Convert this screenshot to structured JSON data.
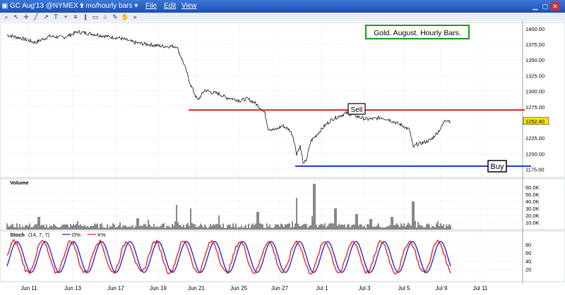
{
  "titlebar": {
    "symbol": "GC Aug'13 @NYMEX",
    "period": "1 mo/hourly bars",
    "menus": [
      "File",
      "Edit",
      "View"
    ]
  },
  "toolbar": {
    "icons": [
      "zoom-icon",
      "arrow-icon",
      "crosshair-icon",
      "line-icon",
      "trend-icon",
      "text-icon",
      "plus-icon",
      "fib-icon",
      "channel-icon",
      "box-icon",
      "circle-icon",
      "draw-icon",
      "hand-icon",
      "more-icon"
    ]
  },
  "price_panel": {
    "annotation": "Gold. August. Hourly Bars.",
    "sell_label": "Sell",
    "buy_label": "Buy",
    "last_price": "1252.40",
    "y_ticks": [
      "1400.00",
      "1375.00",
      "1350.00",
      "1325.00",
      "1300.00",
      "1275.00",
      "1225.00",
      "1200.00",
      "1175.00"
    ],
    "colors": {
      "sell_line": "#e01b1b",
      "buy_line": "#1f3bd6",
      "annotation_border": "#1a9a1a"
    }
  },
  "volume_panel": {
    "label": "Volume",
    "y_ticks": [
      "60.0K",
      "50.0K",
      "40.0K",
      "30.0K",
      "20.0K",
      "10.0K"
    ]
  },
  "stoch_panel": {
    "label": "Stoch",
    "params": "(14, 7, 7)",
    "d_label": "D%",
    "k_label": "K%",
    "y_ticks": [
      "80",
      "60",
      "40",
      "20"
    ],
    "colors": {
      "d_line": "#1a1ad6",
      "k_line": "#e01b1b"
    }
  },
  "x_axis": {
    "labels": [
      "Jun 11",
      "Jun 13",
      "Jun 17",
      "Jun 19",
      "Jun 21",
      "Jun 25",
      "Jun 27",
      "Jul 1",
      "Jul 3",
      "Jul 5",
      "Jul 9",
      "Jul 11"
    ]
  },
  "chart_data": {
    "type": "line",
    "ylim": [
      1162,
      1410
    ],
    "sell_level": 1270,
    "buy_level": 1180,
    "price_path": [
      [
        0,
        1390
      ],
      [
        20,
        1385
      ],
      [
        40,
        1378
      ],
      [
        60,
        1388
      ],
      [
        80,
        1386
      ],
      [
        100,
        1395
      ],
      [
        120,
        1392
      ],
      [
        140,
        1388
      ],
      [
        160,
        1385
      ],
      [
        180,
        1378
      ],
      [
        200,
        1375
      ],
      [
        220,
        1372
      ],
      [
        240,
        1372
      ],
      [
        250,
        1345
      ],
      [
        260,
        1310
      ],
      [
        270,
        1285
      ],
      [
        280,
        1302
      ],
      [
        290,
        1298
      ],
      [
        300,
        1296
      ],
      [
        310,
        1290
      ],
      [
        320,
        1288
      ],
      [
        330,
        1285
      ],
      [
        340,
        1288
      ],
      [
        350,
        1282
      ],
      [
        360,
        1272
      ],
      [
        365,
        1265
      ],
      [
        370,
        1240
      ],
      [
        380,
        1238
      ],
      [
        390,
        1245
      ],
      [
        400,
        1238
      ],
      [
        405,
        1228
      ],
      [
        410,
        1200
      ],
      [
        415,
        1212
      ],
      [
        420,
        1182
      ],
      [
        425,
        1195
      ],
      [
        430,
        1220
      ],
      [
        440,
        1232
      ],
      [
        450,
        1245
      ],
      [
        460,
        1255
      ],
      [
        470,
        1260
      ],
      [
        480,
        1265
      ],
      [
        490,
        1262
      ],
      [
        500,
        1258
      ],
      [
        510,
        1255
      ],
      [
        520,
        1256
      ],
      [
        530,
        1258
      ],
      [
        540,
        1255
      ],
      [
        550,
        1250
      ],
      [
        560,
        1245
      ],
      [
        570,
        1238
      ],
      [
        575,
        1210
      ],
      [
        580,
        1215
      ],
      [
        590,
        1218
      ],
      [
        600,
        1222
      ],
      [
        610,
        1235
      ],
      [
        615,
        1242
      ],
      [
        620,
        1255
      ],
      [
        628,
        1252
      ]
    ],
    "volume_spikes": [
      [
        45,
        18000
      ],
      [
        100,
        12000
      ],
      [
        160,
        10000
      ],
      [
        185,
        16000
      ],
      [
        200,
        14000
      ],
      [
        240,
        35000
      ],
      [
        260,
        30000
      ],
      [
        300,
        20000
      ],
      [
        355,
        25000
      ],
      [
        410,
        45000
      ],
      [
        435,
        65000
      ],
      [
        465,
        30000
      ],
      [
        495,
        22000
      ],
      [
        515,
        15000
      ],
      [
        545,
        18000
      ],
      [
        575,
        40000
      ],
      [
        610,
        12000
      ]
    ],
    "stoch_k_period": 40,
    "stoch_k_amplitude": 38
  }
}
